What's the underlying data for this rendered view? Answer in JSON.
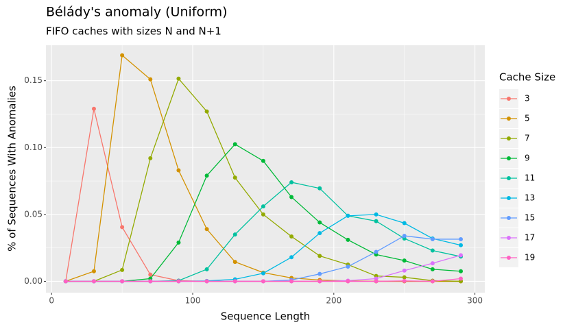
{
  "chart_data": {
    "type": "line",
    "title": "Bélády's anomaly (Uniform)",
    "subtitle": "FIFO caches with sizes N and N+1",
    "x_label": "Sequence Length",
    "y_label": "% of Sequences With Anomalies",
    "legend_title": "Cache Size",
    "legend_position": "right",
    "grid": true,
    "x": [
      10,
      30,
      50,
      70,
      90,
      110,
      130,
      150,
      170,
      190,
      210,
      230,
      250,
      270,
      290
    ],
    "xlim": [
      -4,
      307
    ],
    "xticks": [
      0,
      100,
      200,
      300
    ],
    "ylim": [
      -0.0085,
      0.1765
    ],
    "yticks": [
      {
        "value": 0,
        "label": "0.00"
      },
      {
        "value": 0.05,
        "label": "0.05"
      },
      {
        "value": 0.1,
        "label": "0.10"
      },
      {
        "value": 0.15,
        "label": "0.15"
      }
    ],
    "series": [
      {
        "name": "3",
        "color": "#F8766D",
        "values": [
          0,
          0.129,
          0.0405,
          0.005,
          0.0005,
          0,
          0,
          0,
          0,
          0,
          0,
          0,
          0,
          0,
          0
        ]
      },
      {
        "name": "5",
        "color": "#D39200",
        "values": [
          0,
          0.0075,
          0.169,
          0.151,
          0.083,
          0.039,
          0.0145,
          0.0065,
          0.0025,
          0.001,
          0.0003,
          0,
          0,
          0,
          0
        ]
      },
      {
        "name": "7",
        "color": "#93AA00",
        "values": [
          0,
          0,
          0.0085,
          0.092,
          0.1515,
          0.127,
          0.0775,
          0.05,
          0.0335,
          0.019,
          0.0125,
          0.004,
          0.003,
          0.0005,
          0
        ]
      },
      {
        "name": "9",
        "color": "#00BA38",
        "values": [
          0,
          0,
          0,
          0.002,
          0.029,
          0.079,
          0.1025,
          0.09,
          0.063,
          0.044,
          0.031,
          0.02,
          0.0155,
          0.009,
          0.0075
        ]
      },
      {
        "name": "11",
        "color": "#00C19F",
        "values": [
          0,
          0,
          0,
          0,
          0.0005,
          0.009,
          0.035,
          0.056,
          0.074,
          0.0695,
          0.049,
          0.045,
          0.032,
          0.023,
          0.0185
        ]
      },
      {
        "name": "13",
        "color": "#00B9E3",
        "values": [
          0,
          0,
          0,
          0,
          0,
          0.0003,
          0.0015,
          0.006,
          0.018,
          0.036,
          0.049,
          0.05,
          0.0435,
          0.032,
          0.027
        ]
      },
      {
        "name": "15",
        "color": "#619CFF",
        "values": [
          0,
          0,
          0,
          0,
          0,
          0,
          0,
          0,
          0.001,
          0.0055,
          0.011,
          0.022,
          0.034,
          0.0315,
          0.0315
        ]
      },
      {
        "name": "17",
        "color": "#DB72FB",
        "values": [
          0,
          0,
          0,
          0,
          0,
          0,
          0,
          0,
          0,
          0,
          0.0005,
          0.002,
          0.008,
          0.0135,
          0.0195
        ]
      },
      {
        "name": "19",
        "color": "#FF61C3",
        "values": [
          0,
          0,
          0,
          0,
          0,
          0,
          0,
          0,
          0,
          0,
          0,
          0,
          0.0003,
          0,
          0.002
        ]
      }
    ]
  }
}
